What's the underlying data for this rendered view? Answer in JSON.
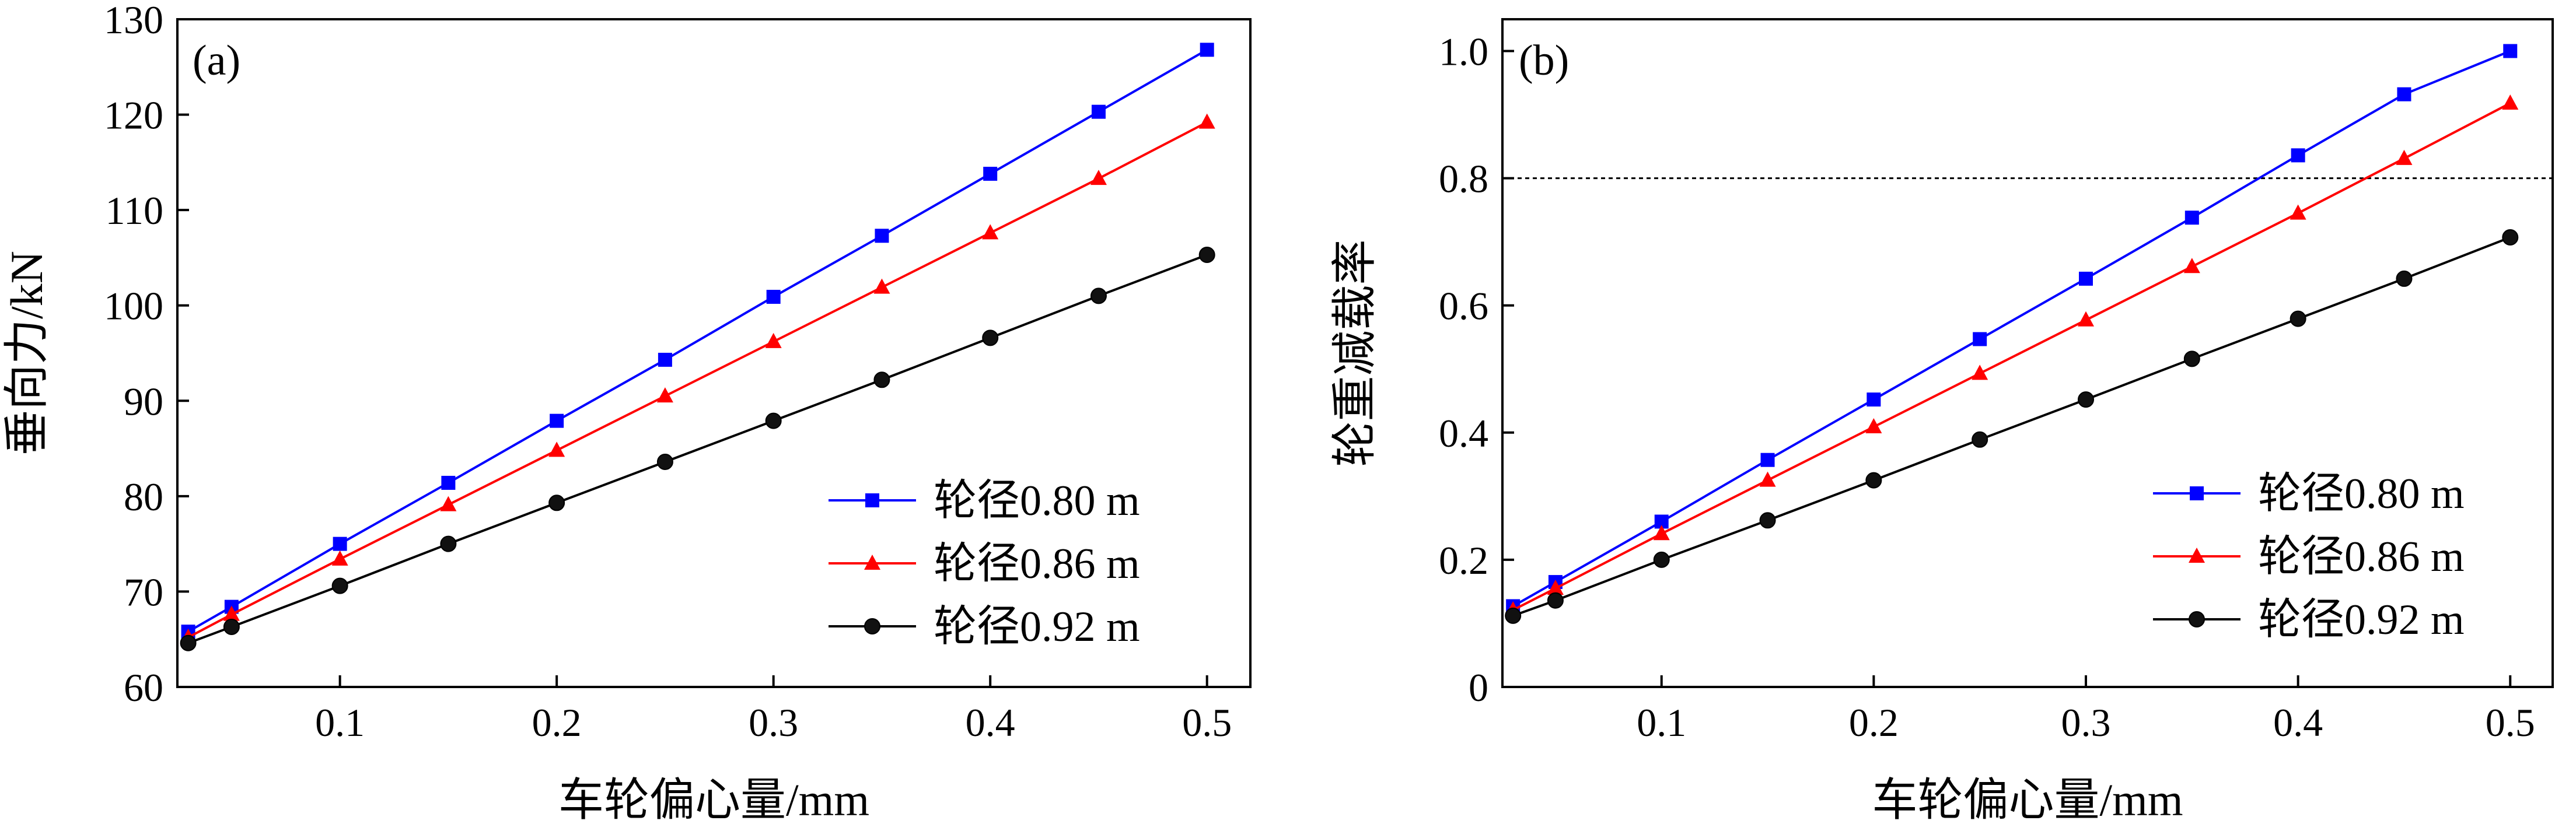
{
  "chart_data": [
    {
      "type": "line",
      "panel_label": "(a)",
      "title": "",
      "xlabel": "车轮偏心量/mm",
      "ylabel": "垂向力/kN",
      "xlim": [
        0.025,
        0.52
      ],
      "ylim": [
        60,
        130
      ],
      "xticks": [
        0.1,
        0.2,
        0.3,
        0.4,
        0.5
      ],
      "yticks": [
        60,
        70,
        80,
        90,
        100,
        110,
        120,
        130
      ],
      "xtick_labels": [
        "0.1",
        "0.2",
        "0.3",
        "0.4",
        "0.5"
      ],
      "ytick_labels": [
        "60",
        "70",
        "80",
        "90",
        "100",
        "110",
        "120",
        "130"
      ],
      "legend_position": "bottom-right",
      "x": [
        0.03,
        0.05,
        0.1,
        0.15,
        0.2,
        0.25,
        0.3,
        0.35,
        0.4,
        0.45,
        0.5
      ],
      "series": [
        {
          "name": "轮径0.80 m",
          "color": "#0000ff",
          "marker": "square",
          "values": [
            65.8,
            68.4,
            75.0,
            81.4,
            87.9,
            94.3,
            100.9,
            107.3,
            113.8,
            120.3,
            126.8
          ]
        },
        {
          "name": "轮径0.86 m",
          "color": "#ff0000",
          "marker": "triangle",
          "values": [
            65.2,
            67.6,
            73.4,
            79.1,
            84.8,
            90.5,
            96.2,
            101.9,
            107.6,
            113.3,
            119.2
          ]
        },
        {
          "name": "轮径0.92 m",
          "color": "#000000",
          "marker": "circle",
          "values": [
            64.6,
            66.3,
            70.6,
            75.0,
            79.3,
            83.6,
            87.9,
            92.2,
            96.6,
            101.0,
            105.3
          ]
        }
      ]
    },
    {
      "type": "line",
      "panel_label": "(b)",
      "title": "",
      "xlabel": "车轮偏心量/mm",
      "ylabel": "轮重减载率",
      "xlim": [
        0.025,
        0.52
      ],
      "ylim": [
        0,
        1.05
      ],
      "xticks": [
        0.1,
        0.2,
        0.3,
        0.4,
        0.5
      ],
      "yticks": [
        0,
        0.2,
        0.4,
        0.6,
        0.8,
        1.0
      ],
      "xtick_labels": [
        "0.1",
        "0.2",
        "0.3",
        "0.4",
        "0.5"
      ],
      "ytick_labels": [
        "0",
        "0.2",
        "0.4",
        "0.6",
        "0.8",
        "1.0"
      ],
      "reference_line": 0.8,
      "legend_position": "bottom-right",
      "x": [
        0.03,
        0.05,
        0.1,
        0.15,
        0.2,
        0.25,
        0.3,
        0.35,
        0.4,
        0.45,
        0.5
      ],
      "series": [
        {
          "name": "轮径0.80 m",
          "color": "#0000ff",
          "marker": "square",
          "values": [
            0.127,
            0.165,
            0.26,
            0.357,
            0.452,
            0.547,
            0.642,
            0.738,
            0.836,
            0.932,
            1.0
          ]
        },
        {
          "name": "轮径0.86 m",
          "color": "#ff0000",
          "marker": "triangle",
          "values": [
            0.121,
            0.155,
            0.241,
            0.325,
            0.409,
            0.493,
            0.577,
            0.661,
            0.745,
            0.831,
            0.918
          ]
        },
        {
          "name": "轮径0.92 m",
          "color": "#000000",
          "marker": "circle",
          "values": [
            0.112,
            0.136,
            0.2,
            0.262,
            0.325,
            0.389,
            0.452,
            0.516,
            0.579,
            0.642,
            0.707
          ]
        }
      ]
    }
  ]
}
